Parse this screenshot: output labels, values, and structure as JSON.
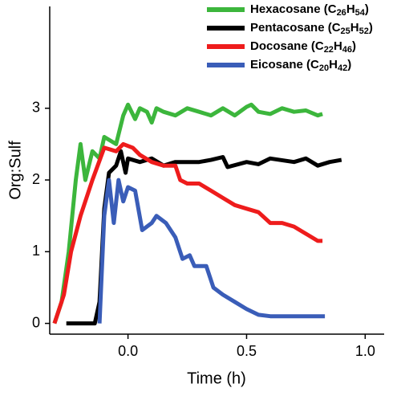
{
  "chart_data": {
    "type": "line",
    "ylabel": "Org:Sulf",
    "xlabel": "Time (h)",
    "xlim": [
      -0.33,
      1.08
    ],
    "ylim": [
      -0.15,
      4.42
    ],
    "xticks": [
      {
        "value": 0,
        "label": "0.0"
      },
      0.5,
      {
        "value": 1,
        "label": "1.0"
      }
    ],
    "yticks": [
      0,
      1,
      2,
      3
    ],
    "legend": "upper right",
    "series": [
      {
        "name": "Hexacosane (C26H54)",
        "color": "#3cb63c",
        "x": [
          -0.31,
          -0.28,
          -0.25,
          -0.22,
          -0.2,
          -0.18,
          -0.15,
          -0.12,
          -0.1,
          -0.05,
          -0.02,
          0.0,
          0.03,
          0.05,
          0.08,
          0.1,
          0.12,
          0.15,
          0.2,
          0.25,
          0.3,
          0.35,
          0.4,
          0.45,
          0.5,
          0.52,
          0.55,
          0.6,
          0.65,
          0.7,
          0.75,
          0.8,
          0.82
        ],
        "values": [
          0,
          0.3,
          1.0,
          2.0,
          2.5,
          2.0,
          2.4,
          2.3,
          2.6,
          2.5,
          2.9,
          3.05,
          2.85,
          3.0,
          2.95,
          2.8,
          3.0,
          2.95,
          2.9,
          3.0,
          2.95,
          2.9,
          3.0,
          2.9,
          3.02,
          3.05,
          2.95,
          2.92,
          3.0,
          2.95,
          2.97,
          2.9,
          2.92
        ]
      },
      {
        "name": "Pentacosane (C25H52)",
        "color": "#000000",
        "x": [
          -0.26,
          -0.2,
          -0.14,
          -0.12,
          -0.1,
          -0.08,
          -0.05,
          -0.03,
          -0.01,
          0.0,
          0.05,
          0.1,
          0.15,
          0.2,
          0.3,
          0.35,
          0.4,
          0.42,
          0.5,
          0.55,
          0.6,
          0.7,
          0.75,
          0.8,
          0.85,
          0.9
        ],
        "values": [
          0,
          0,
          0,
          0.3,
          1.6,
          2.1,
          2.2,
          2.4,
          2.1,
          2.3,
          2.25,
          2.3,
          2.2,
          2.25,
          2.25,
          2.28,
          2.32,
          2.18,
          2.25,
          2.22,
          2.3,
          2.25,
          2.3,
          2.2,
          2.25,
          2.28
        ]
      },
      {
        "name": "Docosane (C22H46)",
        "color": "#ee1c1c",
        "x": [
          -0.31,
          -0.27,
          -0.24,
          -0.2,
          -0.15,
          -0.1,
          -0.05,
          -0.02,
          0.02,
          0.05,
          0.1,
          0.15,
          0.2,
          0.22,
          0.25,
          0.3,
          0.35,
          0.4,
          0.45,
          0.5,
          0.55,
          0.6,
          0.65,
          0.7,
          0.75,
          0.8,
          0.82
        ],
        "values": [
          0,
          0.4,
          1.0,
          1.5,
          2.0,
          2.45,
          2.4,
          2.5,
          2.45,
          2.35,
          2.25,
          2.2,
          2.2,
          2.0,
          1.95,
          1.95,
          1.85,
          1.75,
          1.65,
          1.6,
          1.55,
          1.4,
          1.4,
          1.35,
          1.25,
          1.15,
          1.15
        ]
      },
      {
        "name": "Eicosane (C20H42)",
        "color": "#3a5db8",
        "x": [
          -0.12,
          -0.1,
          -0.08,
          -0.06,
          -0.04,
          -0.02,
          0.0,
          0.03,
          0.06,
          0.1,
          0.12,
          0.16,
          0.2,
          0.23,
          0.26,
          0.28,
          0.33,
          0.36,
          0.4,
          0.45,
          0.5,
          0.55,
          0.6,
          0.7,
          0.8,
          0.83
        ],
        "values": [
          0,
          1.5,
          2.0,
          1.4,
          2.0,
          1.7,
          1.9,
          1.85,
          1.3,
          1.4,
          1.5,
          1.4,
          1.2,
          0.9,
          0.95,
          0.8,
          0.8,
          0.5,
          0.4,
          0.3,
          0.2,
          0.12,
          0.1,
          0.1,
          0.1,
          0.1
        ]
      }
    ]
  }
}
